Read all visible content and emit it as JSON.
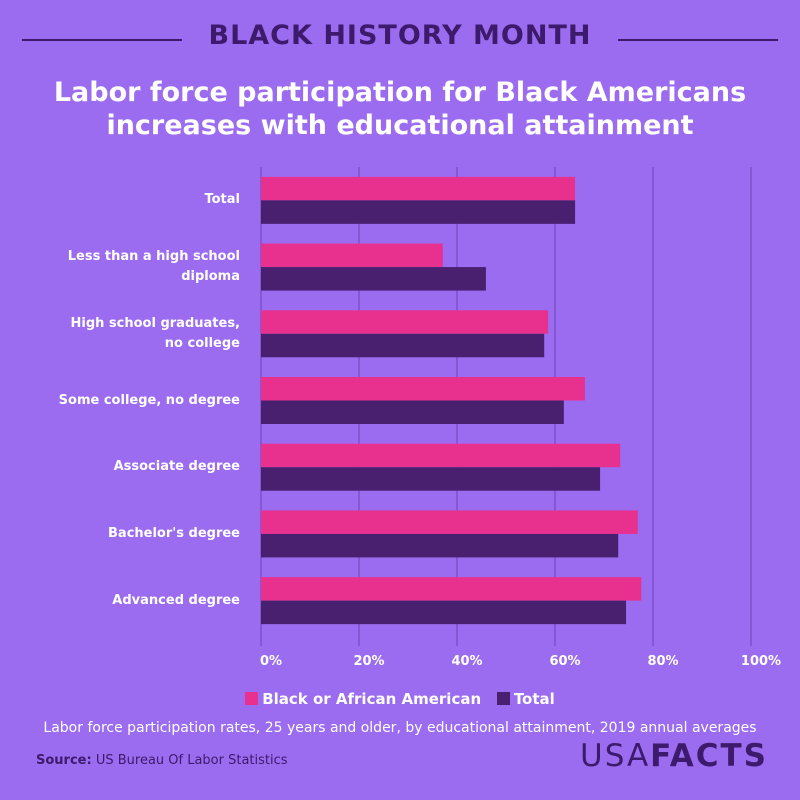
{
  "header": "BLACK HISTORY MONTH",
  "chart_data": {
    "type": "bar",
    "orientation": "horizontal",
    "title": "Labor force participation for Black Americans increases with educational attainment",
    "categories": [
      "Total",
      "Less than a high school diploma",
      "High school graduates, no college",
      "Some college, no degree",
      "Associate degree",
      "Bachelor's degree",
      "Advanced degree"
    ],
    "series": [
      {
        "name": "Black or African American",
        "color": "#e8318f",
        "values": [
          64.1,
          37.1,
          58.6,
          66.1,
          73.3,
          76.9,
          77.6
        ]
      },
      {
        "name": "Total",
        "color": "#48206f",
        "values": [
          64.1,
          45.9,
          57.8,
          61.8,
          69.2,
          72.9,
          74.5
        ]
      }
    ],
    "xlim": [
      0,
      100
    ],
    "xticks": [
      {
        "value": 0,
        "label": "0%"
      },
      {
        "value": 20,
        "label": "20%"
      },
      {
        "value": 40,
        "label": "40%"
      },
      {
        "value": 60,
        "label": "60%"
      },
      {
        "value": 80,
        "label": "80%"
      },
      {
        "value": 100,
        "label": "100%"
      }
    ],
    "grid": true,
    "subtitle": "Labor force participation rates, 25 years and older, by educational attainment, 2019 annual averages"
  },
  "source": {
    "label": "Source:",
    "text": "US Bureau Of Labor Statistics"
  },
  "logo": {
    "light": "USA",
    "bold": "FACTS"
  }
}
